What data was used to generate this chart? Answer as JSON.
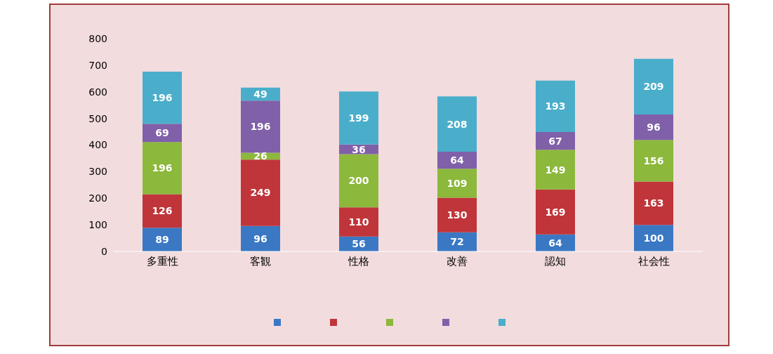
{
  "chart_data": {
    "type": "bar",
    "stacked": true,
    "data_labels": true,
    "grid": false,
    "categories": [
      "多重性",
      "客観",
      "性格",
      "改善",
      "認知",
      "社会性"
    ],
    "ylim": [
      0,
      800
    ],
    "yticks": [
      0,
      100,
      200,
      300,
      400,
      500,
      600,
      700,
      800
    ],
    "series": [
      {
        "color": "#3a78c4",
        "values": [
          89,
          96,
          56,
          72,
          64,
          100
        ]
      },
      {
        "color": "#c0353a",
        "values": [
          126,
          249,
          110,
          130,
          169,
          163
        ]
      },
      {
        "color": "#8cb83c",
        "values": [
          196,
          26,
          200,
          109,
          149,
          156
        ]
      },
      {
        "color": "#8060a8",
        "values": [
          69,
          196,
          36,
          64,
          67,
          96
        ]
      },
      {
        "color": "#4aaecb",
        "values": [
          196,
          49,
          199,
          208,
          193,
          209
        ]
      }
    ]
  }
}
